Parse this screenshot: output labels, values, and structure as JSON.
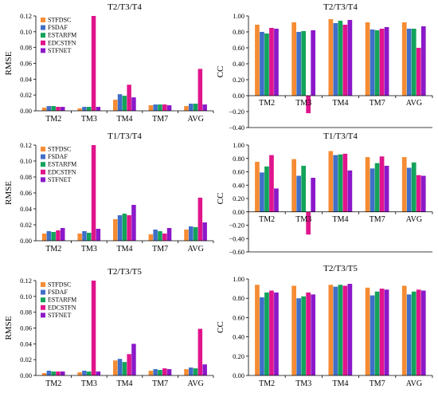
{
  "colors": {
    "STFDSC": "#F58C34",
    "FSDAF": "#3F6FC8",
    "ESTARFM": "#13A35A",
    "EDCSTFN": "#E0158C",
    "STFNET": "#8B18C9"
  },
  "chart_data": [
    {
      "type": "bar",
      "title": "T2/T3/T4",
      "xlabel": "",
      "ylabel": "RMSE",
      "ylim": [
        0,
        0.12
      ],
      "ytick_labels": [
        "0.00",
        "0.02",
        "0.04",
        "0.06",
        "0.08",
        "0.10",
        "0.12"
      ],
      "grid": false,
      "legend": "top-left",
      "categories": [
        "TM2",
        "TM3",
        "TM4",
        "TM7",
        "AVG"
      ],
      "series": [
        {
          "name": "STFDSC",
          "values": [
            0.004,
            0.003,
            0.014,
            0.007,
            0.006
          ]
        },
        {
          "name": "FSDAF",
          "values": [
            0.006,
            0.005,
            0.021,
            0.008,
            0.009
          ]
        },
        {
          "name": "ESTARFM",
          "values": [
            0.006,
            0.005,
            0.019,
            0.008,
            0.009
          ]
        },
        {
          "name": "EDCSTFN",
          "values": [
            0.005,
            0.12,
            0.033,
            0.008,
            0.053
          ]
        },
        {
          "name": "STFNET",
          "values": [
            0.005,
            0.005,
            0.017,
            0.007,
            0.008
          ]
        }
      ]
    },
    {
      "type": "bar",
      "title": "T2/T3/T4",
      "xlabel": "",
      "ylabel": "CC",
      "ylim": [
        -0.4,
        1.0
      ],
      "ytick_labels": [
        "−0.40",
        "−0.20",
        "0.00",
        "0.20",
        "0.40",
        "0.60",
        "0.80",
        "1.00"
      ],
      "grid": false,
      "categories": [
        "TM2",
        "TM3",
        "TM4",
        "TM7",
        "AVG"
      ],
      "series": [
        {
          "name": "STFDSC",
          "values": [
            0.89,
            0.92,
            0.96,
            0.92,
            0.92
          ]
        },
        {
          "name": "FSDAF",
          "values": [
            0.8,
            0.8,
            0.91,
            0.83,
            0.84
          ]
        },
        {
          "name": "ESTARFM",
          "values": [
            0.78,
            0.81,
            0.94,
            0.82,
            0.84
          ]
        },
        {
          "name": "EDCSTFN",
          "values": [
            0.85,
            -0.22,
            0.89,
            0.84,
            0.6
          ]
        },
        {
          "name": "STFNET",
          "values": [
            0.84,
            0.82,
            0.95,
            0.86,
            0.87
          ]
        }
      ]
    },
    {
      "type": "bar",
      "title": "T1/T3/T4",
      "xlabel": "",
      "ylabel": "RMSE",
      "ylim": [
        0,
        0.12
      ],
      "ytick_labels": [
        "0.00",
        "0.02",
        "0.04",
        "0.06",
        "0.08",
        "0.10",
        "0.12"
      ],
      "grid": false,
      "legend": "top-left",
      "categories": [
        "TM2",
        "TM3",
        "TM4",
        "TM7",
        "AVG"
      ],
      "series": [
        {
          "name": "STFDSC",
          "values": [
            0.009,
            0.009,
            0.027,
            0.008,
            0.014
          ]
        },
        {
          "name": "FSDAF",
          "values": [
            0.012,
            0.012,
            0.032,
            0.014,
            0.018
          ]
        },
        {
          "name": "ESTARFM",
          "values": [
            0.011,
            0.01,
            0.034,
            0.012,
            0.017
          ]
        },
        {
          "name": "EDCSTFN",
          "values": [
            0.013,
            0.12,
            0.032,
            0.009,
            0.054
          ]
        },
        {
          "name": "STFNET",
          "values": [
            0.016,
            0.015,
            0.045,
            0.016,
            0.023
          ]
        }
      ]
    },
    {
      "type": "bar",
      "title": "T1/T3/T4",
      "xlabel": "",
      "ylabel": "CC",
      "ylim": [
        -0.6,
        1.0
      ],
      "ytick_labels": [
        "−0.60",
        "−0.40",
        "−0.20",
        "0.00",
        "0.20",
        "0.40",
        "0.60",
        "0.80",
        "1.00"
      ],
      "grid": false,
      "categories": [
        "TM2",
        "TM3",
        "TM4",
        "TM7",
        "AVG"
      ],
      "series": [
        {
          "name": "STFDSC",
          "values": [
            0.75,
            0.79,
            0.91,
            0.82,
            0.82
          ]
        },
        {
          "name": "FSDAF",
          "values": [
            0.59,
            0.54,
            0.85,
            0.65,
            0.66
          ]
        },
        {
          "name": "ESTARFM",
          "values": [
            0.68,
            0.69,
            0.86,
            0.73,
            0.74
          ]
        },
        {
          "name": "EDCSTFN",
          "values": [
            0.85,
            -0.34,
            0.87,
            0.83,
            0.55
          ]
        },
        {
          "name": "STFNET",
          "values": [
            0.35,
            0.51,
            0.62,
            0.69,
            0.54
          ]
        }
      ]
    },
    {
      "type": "bar",
      "title": "T2/T3/T5",
      "xlabel": "",
      "ylabel": "RMSE",
      "ylim": [
        0,
        0.12
      ],
      "ytick_labels": [
        "0.00",
        "0.02",
        "0.04",
        "0.06",
        "0.08",
        "0.10",
        "0.12"
      ],
      "grid": false,
      "legend": "top-left",
      "categories": [
        "TM2",
        "TM3",
        "TM4",
        "TM7",
        "AVG"
      ],
      "series": [
        {
          "name": "STFDSC",
          "values": [
            0.003,
            0.004,
            0.019,
            0.006,
            0.008
          ]
        },
        {
          "name": "FSDAF",
          "values": [
            0.006,
            0.006,
            0.021,
            0.008,
            0.01
          ]
        },
        {
          "name": "ESTARFM",
          "values": [
            0.005,
            0.005,
            0.017,
            0.007,
            0.009
          ]
        },
        {
          "name": "EDCSTFN",
          "values": [
            0.005,
            0.12,
            0.027,
            0.009,
            0.059
          ]
        },
        {
          "name": "STFNET",
          "values": [
            0.005,
            0.005,
            0.04,
            0.008,
            0.014
          ]
        }
      ]
    },
    {
      "type": "bar",
      "title": "T2/T3/T5",
      "xlabel": "",
      "ylabel": "CC",
      "ylim": [
        0,
        1.0
      ],
      "ytick_labels": [
        "0.00",
        "0.20",
        "0.40",
        "0.60",
        "0.80",
        "1.00"
      ],
      "grid": false,
      "categories": [
        "TM2",
        "TM3",
        "TM4",
        "TM7",
        "AVG"
      ],
      "series": [
        {
          "name": "STFDSC",
          "values": [
            0.94,
            0.93,
            0.94,
            0.91,
            0.93
          ]
        },
        {
          "name": "FSDAF",
          "values": [
            0.81,
            0.8,
            0.92,
            0.83,
            0.84
          ]
        },
        {
          "name": "ESTARFM",
          "values": [
            0.86,
            0.82,
            0.94,
            0.87,
            0.87
          ]
        },
        {
          "name": "EDCSTFN",
          "values": [
            0.88,
            0.86,
            0.93,
            0.9,
            0.89
          ]
        },
        {
          "name": "STFNET",
          "values": [
            0.86,
            0.84,
            0.95,
            0.89,
            0.88
          ]
        }
      ]
    }
  ]
}
